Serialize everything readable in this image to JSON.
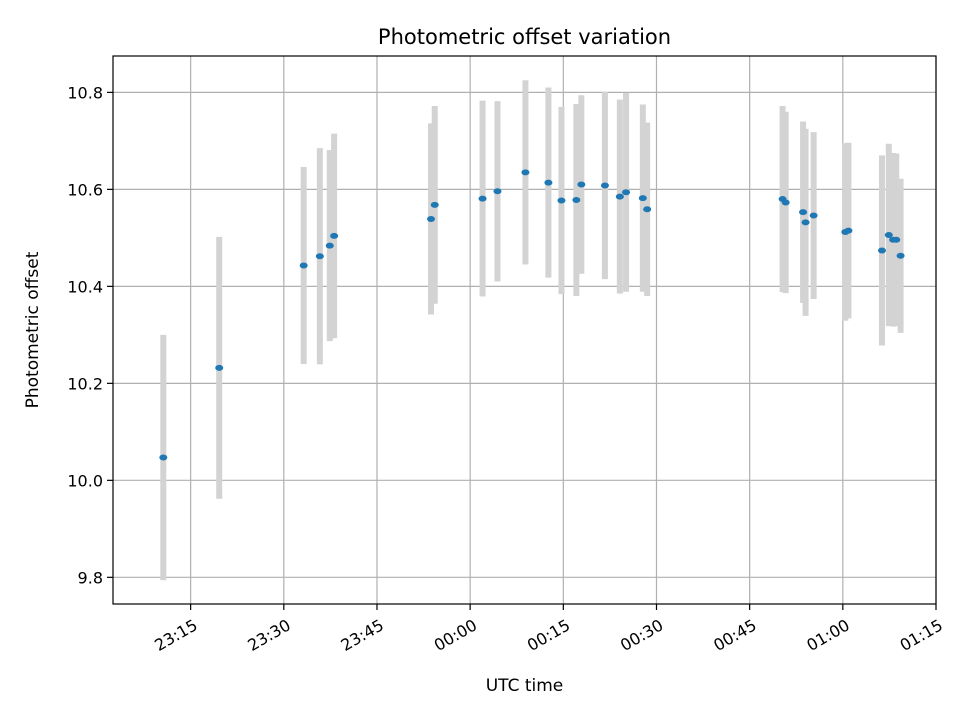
{
  "chart_data": {
    "type": "scatter",
    "title": "Photometric offset variation",
    "xlabel": "UTC time",
    "ylabel": "Photometric offset",
    "grid": true,
    "xlim_minutes": [
      -57.5,
      75
    ],
    "ylim": [
      9.745,
      10.875
    ],
    "x_ticks": [
      {
        "label": "23:15",
        "minutes": -45
      },
      {
        "label": "23:30",
        "minutes": -30
      },
      {
        "label": "23:45",
        "minutes": -15
      },
      {
        "label": "00:00",
        "minutes": 0
      },
      {
        "label": "00:15",
        "minutes": 15
      },
      {
        "label": "00:30",
        "minutes": 30
      },
      {
        "label": "00:45",
        "minutes": 45
      },
      {
        "label": "01:00",
        "minutes": 60
      },
      {
        "label": "01:15",
        "minutes": 75
      }
    ],
    "y_ticks": [
      9.8,
      10.0,
      10.2,
      10.4,
      10.6,
      10.8
    ],
    "errorbar_color": "#d3d3d3",
    "marker_color": "#1f77b4",
    "points": [
      {
        "time": "23:10:36",
        "minutes": -49.4,
        "y": 10.047,
        "err": 0.253
      },
      {
        "time": "23:19:36",
        "minutes": -40.4,
        "y": 10.232,
        "err": 0.27
      },
      {
        "time": "23:33:12",
        "minutes": -26.8,
        "y": 10.443,
        "err": 0.203
      },
      {
        "time": "23:35:48",
        "minutes": -24.2,
        "y": 10.462,
        "err": 0.223
      },
      {
        "time": "23:37:24",
        "minutes": -22.6,
        "y": 10.484,
        "err": 0.197
      },
      {
        "time": "23:38:06",
        "minutes": -21.9,
        "y": 10.504,
        "err": 0.211
      },
      {
        "time": "23:53:42",
        "minutes": -6.3,
        "y": 10.539,
        "err": 0.197
      },
      {
        "time": "23:54:18",
        "minutes": -5.7,
        "y": 10.568,
        "err": 0.204
      },
      {
        "time": "00:02:00",
        "minutes": 2.0,
        "y": 10.581,
        "err": 0.202
      },
      {
        "time": "00:04:24",
        "minutes": 4.4,
        "y": 10.596,
        "err": 0.186
      },
      {
        "time": "00:08:54",
        "minutes": 8.9,
        "y": 10.635,
        "err": 0.19
      },
      {
        "time": "00:12:36",
        "minutes": 12.6,
        "y": 10.614,
        "err": 0.196
      },
      {
        "time": "00:14:42",
        "minutes": 14.7,
        "y": 10.577,
        "err": 0.193
      },
      {
        "time": "00:17:06",
        "minutes": 17.1,
        "y": 10.578,
        "err": 0.198
      },
      {
        "time": "00:17:54",
        "minutes": 17.9,
        "y": 10.61,
        "err": 0.184
      },
      {
        "time": "00:21:42",
        "minutes": 21.7,
        "y": 10.608,
        "err": 0.193
      },
      {
        "time": "00:24:06",
        "minutes": 24.1,
        "y": 10.585,
        "err": 0.2
      },
      {
        "time": "00:25:06",
        "minutes": 25.1,
        "y": 10.594,
        "err": 0.205
      },
      {
        "time": "00:27:48",
        "minutes": 27.8,
        "y": 10.582,
        "err": 0.193
      },
      {
        "time": "00:28:30",
        "minutes": 28.5,
        "y": 10.559,
        "err": 0.179
      },
      {
        "time": "00:50:18",
        "minutes": 50.3,
        "y": 10.58,
        "err": 0.192
      },
      {
        "time": "00:50:48",
        "minutes": 50.8,
        "y": 10.573,
        "err": 0.187
      },
      {
        "time": "00:53:36",
        "minutes": 53.6,
        "y": 10.553,
        "err": 0.187
      },
      {
        "time": "00:54:00",
        "minutes": 54.0,
        "y": 10.532,
        "err": 0.193
      },
      {
        "time": "00:55:18",
        "minutes": 55.3,
        "y": 10.546,
        "err": 0.172
      },
      {
        "time": "01:00:24",
        "minutes": 60.4,
        "y": 10.512,
        "err": 0.183
      },
      {
        "time": "01:00:54",
        "minutes": 60.9,
        "y": 10.515,
        "err": 0.181
      },
      {
        "time": "01:06:18",
        "minutes": 66.3,
        "y": 10.474,
        "err": 0.196
      },
      {
        "time": "01:07:24",
        "minutes": 67.4,
        "y": 10.506,
        "err": 0.188
      },
      {
        "time": "01:08:06",
        "minutes": 68.1,
        "y": 10.496,
        "err": 0.179
      },
      {
        "time": "01:08:36",
        "minutes": 68.6,
        "y": 10.496,
        "err": 0.178
      },
      {
        "time": "01:09:18",
        "minutes": 69.3,
        "y": 10.463,
        "err": 0.159
      }
    ]
  }
}
